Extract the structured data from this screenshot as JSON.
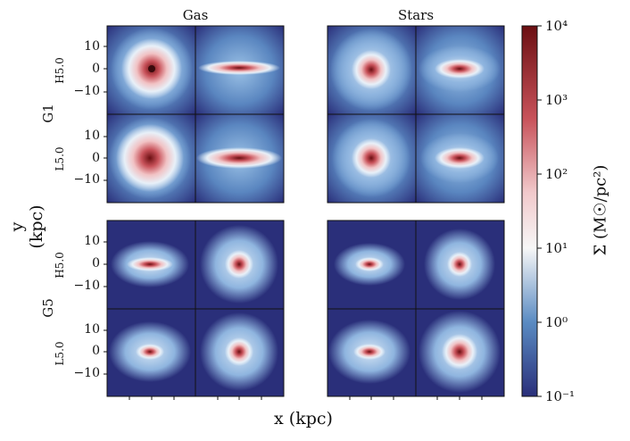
{
  "columns": {
    "gas": "Gas",
    "stars": "Stars"
  },
  "groups": [
    {
      "name": "G1",
      "rows": [
        "H5.0",
        "L5.0"
      ]
    },
    {
      "name": "G5",
      "rows": [
        "H5.0",
        "L5.0"
      ]
    }
  ],
  "axes": {
    "xlabel": "x (kpc)",
    "ylabel": "y (kpc)",
    "yticks": [
      "10",
      "0",
      "−10"
    ]
  },
  "colorbar": {
    "label": "Σ (M☉/pc²)",
    "ticks": [
      "10⁴",
      "10³",
      "10²",
      "10¹",
      "10⁰",
      "10⁻¹"
    ],
    "colors": {
      "top": "#6b0f12",
      "upper": "#c8525a",
      "mid": "#f7f7f7",
      "lower": "#5a8bc2",
      "bottom": "#2a2f7a"
    }
  }
}
